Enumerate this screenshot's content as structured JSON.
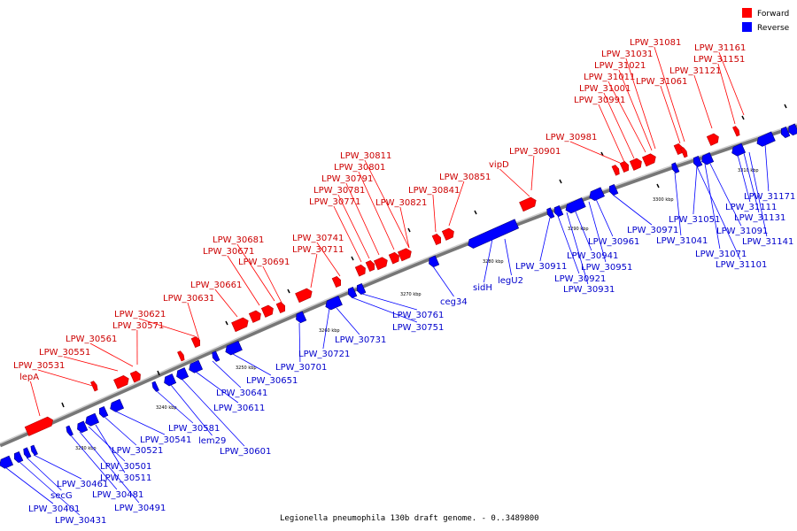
{
  "legend": {
    "forward_label": "Forward",
    "reverse_label": "Reverse",
    "forward_color": "#ff0000",
    "reverse_color": "#0000ff"
  },
  "caption": "Legionella pneumophila 130b draft genome. - 0..3489800",
  "ticks": [
    "3230 kbp",
    "3240 kbp",
    "3250 kbp",
    "3260 kbp",
    "3270 kbp",
    "3280 kbp",
    "3290 kbp",
    "3300 kbp",
    "3310 kbp"
  ],
  "forward_genes": [
    "lepA",
    "LPW_30531",
    "LPW_30551",
    "LPW_30561",
    "LPW_30571",
    "LPW_30621",
    "LPW_30631",
    "LPW_30661",
    "LPW_30671",
    "LPW_30681",
    "LPW_30691",
    "LPW_30711",
    "LPW_30741",
    "LPW_30771",
    "LPW_30781",
    "LPW_30791",
    "LPW_30801",
    "LPW_30811",
    "LPW_30821",
    "LPW_30841",
    "LPW_30851",
    "vipD",
    "LPW_30901",
    "LPW_30981",
    "LPW_30991",
    "LPW_31001",
    "LPW_31011",
    "LPW_31021",
    "LPW_31031",
    "LPW_31081",
    "LPW_31061",
    "LPW_31121",
    "LPW_31151",
    "LPW_31161"
  ],
  "reverse_genes": [
    "LPW_30401",
    "LPW_30431",
    "secG",
    "LPW_30461",
    "LPW_30481",
    "LPW_30491",
    "LPW_30501",
    "LPW_30511",
    "LPW_30521",
    "LPW_30541",
    "LPW_30581",
    "lem29",
    "LPW_30601",
    "LPW_30611",
    "LPW_30641",
    "LPW_30651",
    "LPW_30701",
    "LPW_30721",
    "LPW_30731",
    "LPW_30751",
    "LPW_30761",
    "ceg34",
    "sidH",
    "legU2",
    "LPW_30911",
    "LPW_30921",
    "LPW_30931",
    "LPW_30941",
    "LPW_30951",
    "LPW_30961",
    "LPW_30971",
    "LPW_31041",
    "LPW_31051",
    "LPW_31071",
    "LPW_31091",
    "LPW_31101",
    "LPW_31111",
    "LPW_31131",
    "LPW_31141",
    "LPW_31171"
  ]
}
